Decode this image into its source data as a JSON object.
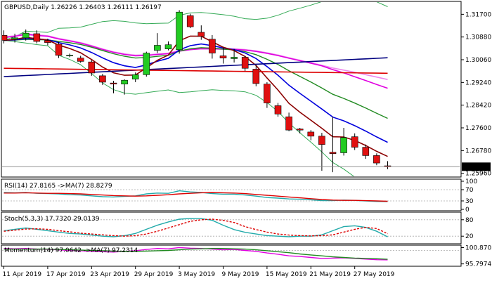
{
  "symbol_header": "GBPUSD,Daily  1.26226 1.26403 1.26111 1.26197",
  "colors": {
    "bull": "#22cc22",
    "bear": "#e01010",
    "ma_dark_red": "#8b0000",
    "ma_blue": "#0000dd",
    "ma_green": "#228b22",
    "ma_magenta": "#e000e0",
    "ma_pink": "#ee88ee",
    "ma_navy": "#000080",
    "ma_red": "#dd0000",
    "bb": "#33aa55",
    "stoch_main": "#22aaaa",
    "stoch_signal": "#dd0000",
    "rsi_line": "#22aaaa",
    "rsi_ma": "#dd0000"
  },
  "chart_data": [
    {
      "type": "candlestick",
      "title": "GBPUSD,Daily",
      "ohlc_text": "1.26226 1.26403 1.26111 1.26197",
      "x_tick_labels": [
        "11 Apr 2019",
        "17 Apr 2019",
        "23 Apr 2019",
        "29 Apr 2019",
        "3 May 2019",
        "9 May 2019",
        "15 May 2019",
        "21 May 2019",
        "27 May 2019"
      ],
      "y_tick_labels": [
        "1.31700",
        "1.30880",
        "1.30060",
        "1.29240",
        "1.28420",
        "1.27600",
        "1.26780",
        "1.25960"
      ],
      "current_price_label": "1.26197",
      "ylim": [
        1.2585,
        1.3214
      ],
      "candles": [
        {
          "o": 1.3094,
          "h": 1.3112,
          "l": 1.3065,
          "c": 1.3076
        },
        {
          "o": 1.308,
          "h": 1.31,
          "l": 1.3068,
          "c": 1.3085
        },
        {
          "o": 1.3085,
          "h": 1.3115,
          "l": 1.3075,
          "c": 1.3102
        },
        {
          "o": 1.31,
          "h": 1.3112,
          "l": 1.3065,
          "c": 1.3072
        },
        {
          "o": 1.3075,
          "h": 1.3082,
          "l": 1.3058,
          "c": 1.3068
        },
        {
          "o": 1.3062,
          "h": 1.307,
          "l": 1.3012,
          "c": 1.3022
        },
        {
          "o": 1.302,
          "h": 1.3028,
          "l": 1.3015,
          "c": 1.3022
        },
        {
          "o": 1.3012,
          "h": 1.302,
          "l": 1.2995,
          "c": 1.3
        },
        {
          "o": 1.2998,
          "h": 1.3005,
          "l": 1.2948,
          "c": 1.2958
        },
        {
          "o": 1.2948,
          "h": 1.2955,
          "l": 1.2915,
          "c": 1.2925
        },
        {
          "o": 1.2922,
          "h": 1.293,
          "l": 1.2885,
          "c": 1.2918
        },
        {
          "o": 1.2918,
          "h": 1.2935,
          "l": 1.288,
          "c": 1.2932
        },
        {
          "o": 1.2936,
          "h": 1.296,
          "l": 1.2925,
          "c": 1.2952
        },
        {
          "o": 1.2952,
          "h": 1.3035,
          "l": 1.2945,
          "c": 1.303
        },
        {
          "o": 1.304,
          "h": 1.3102,
          "l": 1.303,
          "c": 1.3058
        },
        {
          "o": 1.3045,
          "h": 1.3072,
          "l": 1.304,
          "c": 1.306
        },
        {
          "o": 1.3042,
          "h": 1.3185,
          "l": 1.3028,
          "c": 1.3178
        },
        {
          "o": 1.3165,
          "h": 1.3172,
          "l": 1.312,
          "c": 1.3125
        },
        {
          "o": 1.3105,
          "h": 1.313,
          "l": 1.3078,
          "c": 1.309
        },
        {
          "o": 1.308,
          "h": 1.3095,
          "l": 1.301,
          "c": 1.303
        },
        {
          "o": 1.302,
          "h": 1.305,
          "l": 1.2992,
          "c": 1.3012
        },
        {
          "o": 1.301,
          "h": 1.3045,
          "l": 1.2996,
          "c": 1.3015
        },
        {
          "o": 1.3015,
          "h": 1.302,
          "l": 1.2965,
          "c": 1.2975
        },
        {
          "o": 1.2972,
          "h": 1.2985,
          "l": 1.291,
          "c": 1.292
        },
        {
          "o": 1.2918,
          "h": 1.2925,
          "l": 1.2832,
          "c": 1.285
        },
        {
          "o": 1.284,
          "h": 1.285,
          "l": 1.28,
          "c": 1.281
        },
        {
          "o": 1.28,
          "h": 1.2815,
          "l": 1.2748,
          "c": 1.2752
        },
        {
          "o": 1.2756,
          "h": 1.276,
          "l": 1.274,
          "c": 1.2752
        },
        {
          "o": 1.2745,
          "h": 1.2752,
          "l": 1.2715,
          "c": 1.273
        },
        {
          "o": 1.273,
          "h": 1.2742,
          "l": 1.2605,
          "c": 1.27
        },
        {
          "o": 1.2672,
          "h": 1.28,
          "l": 1.26,
          "c": 1.2667
        },
        {
          "o": 1.267,
          "h": 1.276,
          "l": 1.266,
          "c": 1.2725
        },
        {
          "o": 1.2728,
          "h": 1.274,
          "l": 1.268,
          "c": 1.269
        },
        {
          "o": 1.269,
          "h": 1.27,
          "l": 1.2648,
          "c": 1.266
        },
        {
          "o": 1.266,
          "h": 1.2668,
          "l": 1.2625,
          "c": 1.2633
        },
        {
          "o": 1.2623,
          "h": 1.264,
          "l": 1.2611,
          "c": 1.262
        }
      ]
    },
    {
      "type": "line",
      "title": "RSI(14) 27.8165  ->MA(7) 28.8279",
      "y_tick_labels": [
        "100",
        "70",
        "30",
        "0"
      ],
      "ylim": [
        0,
        100
      ],
      "series": [
        {
          "name": "RSI(14)",
          "values": [
            60,
            59,
            60,
            57,
            56,
            55,
            52,
            51,
            48,
            45,
            44,
            46,
            48,
            55,
            58,
            57,
            66,
            62,
            60,
            56,
            54,
            54,
            51,
            47,
            42,
            40,
            37,
            36,
            34,
            31,
            31,
            33,
            32,
            30,
            28,
            27.8
          ]
        },
        {
          "name": "MA(7)",
          "values": [
            58,
            58,
            59,
            58,
            57,
            57,
            56,
            55,
            53,
            51,
            49,
            48,
            47,
            48,
            50,
            52,
            55,
            57,
            59,
            60,
            59,
            58,
            56,
            53,
            50,
            47,
            44,
            41,
            38,
            35,
            33,
            32,
            32,
            31,
            30,
            28.8
          ]
        }
      ]
    },
    {
      "type": "line",
      "title": "Stoch(5,3,3) 17.7320 29.0139",
      "y_tick_labels": [
        "80",
        "20"
      ],
      "ylim": [
        0,
        100
      ],
      "series": [
        {
          "name": "Stoch(5,3,3)",
          "values": [
            40,
            45,
            50,
            45,
            40,
            35,
            30,
            28,
            24,
            20,
            18,
            22,
            30,
            45,
            60,
            72,
            82,
            85,
            84,
            78,
            60,
            44,
            34,
            28,
            22,
            20,
            18,
            20,
            20,
            25,
            40,
            55,
            58,
            52,
            38,
            17.7
          ]
        },
        {
          "name": "Signal",
          "values": [
            38,
            42,
            46,
            47,
            45,
            40,
            36,
            31,
            28,
            25,
            22,
            20,
            22,
            28,
            38,
            50,
            62,
            74,
            80,
            82,
            78,
            70,
            55,
            44,
            35,
            28,
            24,
            22,
            21,
            22,
            25,
            35,
            45,
            52,
            48,
            29
          ]
        }
      ]
    },
    {
      "type": "line",
      "title": "Momentum(14) 97.0642  ->MA(7) 97.2314",
      "y_tick_labels": [
        "100.8705",
        "95.7974"
      ],
      "ylim": [
        95.5,
        101.2
      ],
      "series": [
        {
          "name": "Momentum(14)",
          "values": [
            100.6,
            100.5,
            100.6,
            100.4,
            100.3,
            100.2,
            100.0,
            99.9,
            99.7,
            99.6,
            99.5,
            99.7,
            99.9,
            100.3,
            100.6,
            100.5,
            100.9,
            100.7,
            100.6,
            100.4,
            100.2,
            100.3,
            100.0,
            99.7,
            99.2,
            98.8,
            98.3,
            98.1,
            97.8,
            97.5,
            97.6,
            97.7,
            97.5,
            97.3,
            97.1,
            97.06
          ]
        },
        {
          "name": "MA(7)",
          "values": [
            100.4,
            100.4,
            100.4,
            100.4,
            100.4,
            100.3,
            100.2,
            100.1,
            100.0,
            99.9,
            99.8,
            99.7,
            99.7,
            99.8,
            99.9,
            100.0,
            100.2,
            100.4,
            100.5,
            100.6,
            100.6,
            100.5,
            100.4,
            100.2,
            99.9,
            99.6,
            99.3,
            98.9,
            98.6,
            98.3,
            98.0,
            97.8,
            97.6,
            97.5,
            97.4,
            97.23
          ]
        }
      ]
    }
  ]
}
